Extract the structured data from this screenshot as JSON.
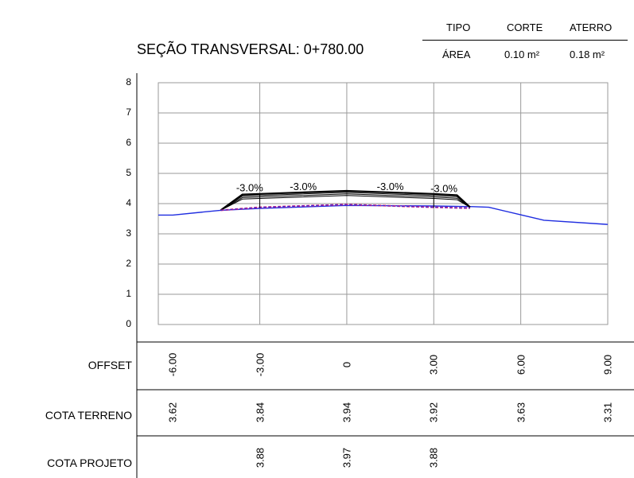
{
  "section_title": "SEÇÃO TRANSVERSAL: 0+780.00",
  "table": {
    "headers": [
      "TIPO",
      "CORTE",
      "ATERRO"
    ],
    "row": [
      "ÁREA",
      "0.10 m²",
      "0.18 m²"
    ]
  },
  "chart_data": {
    "type": "line",
    "title": "SEÇÃO TRANSVERSAL: 0+780.00",
    "ylim": [
      0,
      8
    ],
    "xlim": [
      -6.5,
      9.0
    ],
    "y_ticks": [
      "8",
      "7",
      "6",
      "5",
      "4",
      "3",
      "2",
      "1",
      "0"
    ],
    "grid": true,
    "series": [
      {
        "role": "terreno",
        "color": "#1f2de0",
        "x": [
          -6.5,
          -6.0,
          -4.35,
          -3.0,
          0.0,
          3.0,
          4.35,
          4.9,
          6.0,
          6.8,
          9.0
        ],
        "y": [
          3.62,
          3.62,
          3.78,
          3.84,
          3.94,
          3.92,
          3.9,
          3.88,
          3.63,
          3.45,
          3.31
        ]
      },
      {
        "role": "projeto",
        "color": "#000000",
        "x": [
          -4.35,
          -3.6,
          -3.0,
          0.0,
          3.0,
          3.8,
          4.25
        ],
        "y": [
          3.78,
          4.3,
          4.32,
          4.42,
          4.32,
          4.28,
          3.88
        ]
      },
      {
        "role": "projeto-base",
        "color": "#e0207a",
        "x": [
          -4.35,
          -3.0,
          0.0,
          3.0,
          4.25
        ],
        "y": [
          3.78,
          3.88,
          3.97,
          3.88,
          3.85
        ]
      }
    ],
    "slope_labels": [
      {
        "text": "-3.0%",
        "x": -3.35,
        "y": 4.35
      },
      {
        "text": "-3.0%",
        "x": -1.5,
        "y": 4.4
      },
      {
        "text": "-3.0%",
        "x": 1.5,
        "y": 4.4
      },
      {
        "text": "-3.0%",
        "x": 3.35,
        "y": 4.33
      }
    ]
  },
  "rows": {
    "offset": {
      "label": "OFFSET",
      "values": [
        "-6.00",
        "-3.00",
        "0",
        "3.00",
        "6.00",
        "9.00"
      ]
    },
    "cota_terreno": {
      "label": "COTA TERRENO",
      "values": [
        "3.62",
        "3.84",
        "3.94",
        "3.92",
        "3.63",
        "3.31"
      ]
    },
    "cota_projeto": {
      "label": "COTA PROJETO",
      "values": [
        "",
        "3.88",
        "3.97",
        "3.88",
        "",
        ""
      ]
    }
  },
  "row_positions_x": [
    -6.0,
    -3.0,
    0.0,
    3.0,
    6.0,
    9.0
  ],
  "colors": {
    "terreno": "#1f2de0",
    "projeto": "#000000",
    "base": "#e0207a",
    "grid": "#9a9a9a"
  }
}
